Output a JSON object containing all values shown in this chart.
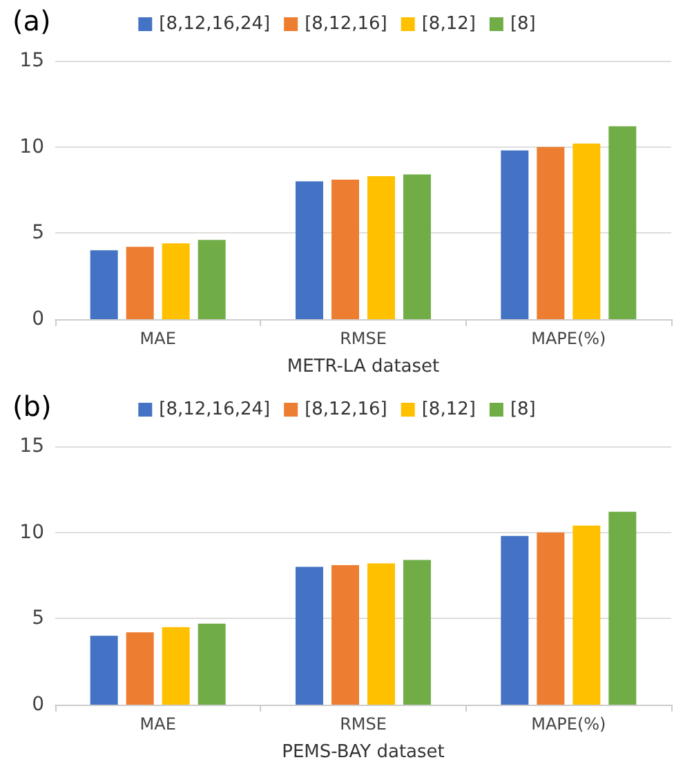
{
  "chart_data": [
    {
      "type": "bar",
      "title": "(a)",
      "xlabel": "METR-LA dataset",
      "categories": [
        "MAE",
        "RMSE",
        "MAPE(%)"
      ],
      "series": [
        {
          "name": "[8,12,16,24]",
          "color": "#4472c4",
          "values": [
            4.0,
            8.0,
            9.8
          ]
        },
        {
          "name": "[8,12,16]",
          "color": "#ed7d31",
          "values": [
            4.2,
            8.1,
            10.0
          ]
        },
        {
          "name": "[8,12]",
          "color": "#ffc000",
          "values": [
            4.4,
            8.3,
            10.2
          ]
        },
        {
          "name": "[8]",
          "color": "#70ad47",
          "values": [
            4.6,
            8.4,
            11.2
          ]
        }
      ],
      "ylim": [
        0,
        15
      ],
      "yticks": [
        0,
        5,
        10,
        15
      ],
      "grid": "y",
      "legend": "top"
    },
    {
      "type": "bar",
      "title": "(b)",
      "xlabel": "PEMS-BAY dataset",
      "categories": [
        "MAE",
        "RMSE",
        "MAPE(%)"
      ],
      "series": [
        {
          "name": "[8,12,16,24]",
          "color": "#4472c4",
          "values": [
            4.0,
            8.0,
            9.8
          ]
        },
        {
          "name": "[8,12,16]",
          "color": "#ed7d31",
          "values": [
            4.2,
            8.1,
            10.0
          ]
        },
        {
          "name": "[8,12]",
          "color": "#ffc000",
          "values": [
            4.5,
            8.2,
            10.4
          ]
        },
        {
          "name": "[8]",
          "color": "#70ad47",
          "values": [
            4.7,
            8.4,
            11.2
          ]
        }
      ],
      "ylim": [
        0,
        15
      ],
      "yticks": [
        0,
        5,
        10,
        15
      ],
      "grid": "y",
      "legend": "top"
    }
  ]
}
